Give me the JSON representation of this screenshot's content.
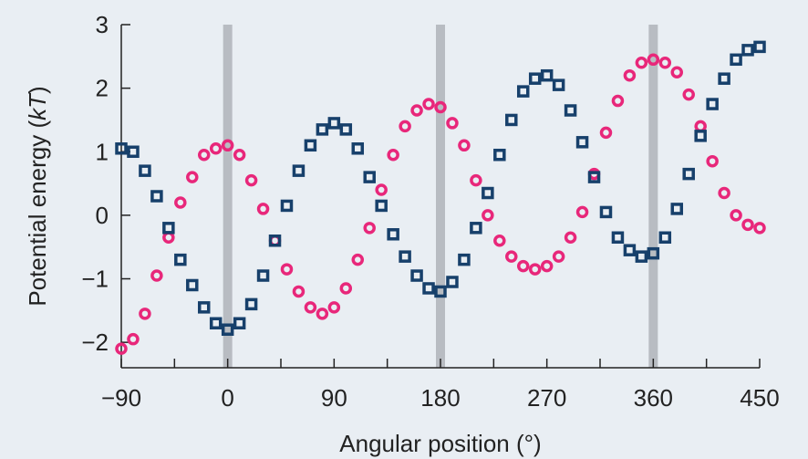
{
  "chart_data": {
    "type": "scatter",
    "title": "",
    "xlabel": "Angular position (°)",
    "ylabel_parts": [
      "Potential energy (",
      "kT",
      ")"
    ],
    "xlim": [
      -90,
      450
    ],
    "ylim": [
      -2.4,
      3
    ],
    "x_ticks": [
      -90,
      0,
      90,
      180,
      270,
      360,
      450
    ],
    "x_tick_labels": [
      "−90",
      "0",
      "90",
      "180",
      "270",
      "360",
      "450"
    ],
    "x_minor_ticks": [
      -45,
      45,
      135,
      225,
      315,
      405
    ],
    "y_ticks": [
      -2,
      -1,
      0,
      1,
      2,
      3
    ],
    "y_tick_labels": [
      "−2",
      "−1",
      "0",
      "1",
      "2",
      "3"
    ],
    "vertical_bands": [
      0,
      180,
      360
    ],
    "grid": false,
    "legend": "none",
    "colors": {
      "background": "#e9eef3",
      "band": "#b8bcc2",
      "circles": "#e8277a",
      "squares": "#17406b",
      "axis": "#222222"
    },
    "series": [
      {
        "marker": "circle",
        "color": "#e8277a",
        "x": [
          -90,
          -80,
          -70,
          -60,
          -50,
          -40,
          -30,
          -20,
          -10,
          0,
          10,
          20,
          30,
          40,
          50,
          60,
          70,
          80,
          90,
          100,
          110,
          120,
          130,
          140,
          150,
          160,
          170,
          180,
          190,
          200,
          210,
          220,
          230,
          240,
          250,
          260,
          270,
          280,
          290,
          300,
          310,
          320,
          330,
          340,
          350,
          360,
          370,
          380,
          390,
          400,
          410,
          420,
          430,
          440,
          450
        ],
        "y": [
          -2.1,
          -1.95,
          -1.55,
          -0.95,
          -0.35,
          0.2,
          0.6,
          0.95,
          1.05,
          1.1,
          0.95,
          0.55,
          0.1,
          -0.4,
          -0.85,
          -1.2,
          -1.45,
          -1.55,
          -1.45,
          -1.15,
          -0.7,
          -0.2,
          0.4,
          0.95,
          1.4,
          1.65,
          1.75,
          1.7,
          1.45,
          1.1,
          0.55,
          0.0,
          -0.4,
          -0.65,
          -0.8,
          -0.85,
          -0.8,
          -0.65,
          -0.35,
          0.05,
          0.65,
          1.3,
          1.8,
          2.2,
          2.4,
          2.45,
          2.4,
          2.25,
          1.9,
          1.4,
          0.85,
          0.35,
          0.0,
          -0.15,
          -0.2
        ]
      },
      {
        "marker": "square",
        "color": "#17406b",
        "x": [
          -90,
          -80,
          -70,
          -60,
          -50,
          -40,
          -30,
          -20,
          -10,
          0,
          10,
          20,
          30,
          40,
          50,
          60,
          70,
          80,
          90,
          100,
          110,
          120,
          130,
          140,
          150,
          160,
          170,
          180,
          190,
          200,
          210,
          220,
          230,
          240,
          250,
          260,
          270,
          280,
          290,
          300,
          310,
          320,
          330,
          340,
          350,
          360,
          370,
          380,
          390,
          400,
          410,
          420,
          430,
          440,
          450
        ],
        "y": [
          1.05,
          1.0,
          0.7,
          0.3,
          -0.2,
          -0.7,
          -1.1,
          -1.45,
          -1.7,
          -1.8,
          -1.7,
          -1.4,
          -0.95,
          -0.4,
          0.15,
          0.7,
          1.1,
          1.35,
          1.45,
          1.35,
          1.05,
          0.6,
          0.15,
          -0.3,
          -0.65,
          -0.95,
          -1.15,
          -1.2,
          -1.05,
          -0.7,
          -0.2,
          0.35,
          0.95,
          1.5,
          1.95,
          2.15,
          2.2,
          2.05,
          1.65,
          1.15,
          0.6,
          0.05,
          -0.35,
          -0.55,
          -0.65,
          -0.6,
          -0.35,
          0.1,
          0.65,
          1.25,
          1.75,
          2.15,
          2.45,
          2.6,
          2.65
        ]
      }
    ]
  }
}
